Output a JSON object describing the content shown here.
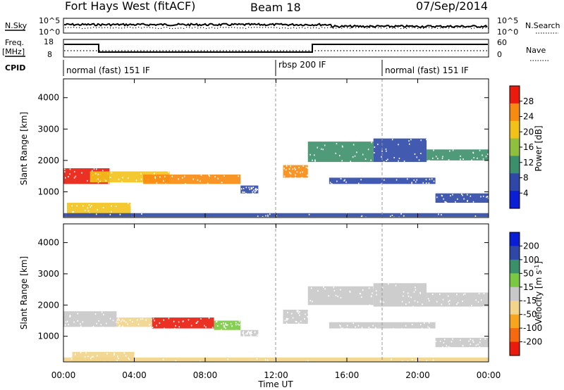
{
  "header": {
    "station": "Fort Hays West (fitACF)",
    "beam": "Beam 18",
    "date": "07/Sep/2014"
  },
  "top_panels": {
    "nsky_label": "N.Sky",
    "nsky_ticks": [
      "10^5",
      "10^0"
    ],
    "nsearch_label": "N.Search",
    "nsearch_ticks": [
      "10^5",
      "10^0"
    ],
    "freq_label_1": "Freq.",
    "freq_label_2": "[MHz]",
    "freq_ticks": [
      "18",
      "8"
    ],
    "nave_label": "Nave",
    "nave_ticks": [
      "60",
      "0"
    ],
    "cpid_label": "CPID",
    "cpid_segments": [
      {
        "label": "normal (fast) 151 IF",
        "start": 0
      },
      {
        "label": "rbsp 200 IF",
        "start": 12
      },
      {
        "label": "normal (fast) 151 IF",
        "start": 18
      }
    ]
  },
  "chart_data": [
    {
      "type": "heatmap",
      "name": "power",
      "ylabel": "Slant Range [km]",
      "ylim": [
        180,
        4600
      ],
      "yticks": [
        "1000",
        "2000",
        "3000",
        "4000"
      ],
      "colorbar_label": "Power [dB]",
      "colorbar_ticks": [
        "4",
        "8",
        "12",
        "16",
        "20",
        "24",
        "28"
      ],
      "colors": [
        "#0a1ed6",
        "#2f48a8",
        "#3b8f6a",
        "#8fbf3f",
        "#f2c21a",
        "#f78a10",
        "#e81b0c"
      ],
      "bands": [
        {
          "x0": 0.0,
          "x1": 2.6,
          "y0": 1250,
          "y1": 1750,
          "level": 6
        },
        {
          "x0": 0.2,
          "x1": 3.8,
          "y0": 200,
          "y1": 650,
          "level": 4
        },
        {
          "x0": 1.5,
          "x1": 6.0,
          "y0": 1300,
          "y1": 1650,
          "level": 4
        },
        {
          "x0": 4.5,
          "x1": 10.0,
          "y0": 1250,
          "y1": 1550,
          "level": 5
        },
        {
          "x0": 10.0,
          "x1": 11.0,
          "y0": 950,
          "y1": 1200,
          "level": 1
        },
        {
          "x0": 12.4,
          "x1": 13.8,
          "y0": 1450,
          "y1": 1850,
          "level": 5
        },
        {
          "x0": 13.8,
          "x1": 17.5,
          "y0": 1950,
          "y1": 2600,
          "level": 2
        },
        {
          "x0": 17.5,
          "x1": 20.5,
          "y0": 1950,
          "y1": 2700,
          "level": 1
        },
        {
          "x0": 20.5,
          "x1": 24.0,
          "y0": 2000,
          "y1": 2350,
          "level": 2
        },
        {
          "x0": 15.0,
          "x1": 21.0,
          "y0": 1250,
          "y1": 1450,
          "level": 1
        },
        {
          "x0": 21.0,
          "x1": 24.0,
          "y0": 650,
          "y1": 950,
          "level": 1
        },
        {
          "x0": 0.0,
          "x1": 24.0,
          "y0": 200,
          "y1": 320,
          "level": 1
        }
      ]
    },
    {
      "type": "heatmap",
      "name": "velocity",
      "ylabel": "Slant Range [km]",
      "ylim": [
        180,
        4600
      ],
      "yticks": [
        "1000",
        "2000",
        "3000",
        "4000"
      ],
      "xlabel": "Time UT",
      "xlim": [
        0,
        24
      ],
      "xticks": [
        "00:00",
        "04:00",
        "08:00",
        "12:00",
        "16:00",
        "20:00",
        "00:00"
      ],
      "colorbar_label": "Velocity",
      "colorbar_unit": "[m s",
      "colorbar_exp": "-1",
      "colorbar_ticks": [
        "-200",
        "-100",
        "-50",
        "-15",
        "15",
        "50",
        "100",
        "200"
      ],
      "colors": [
        "#e81b0c",
        "#f56a10",
        "#f7a51e",
        "#f2d48a",
        "#c8c8c8",
        "#7ac943",
        "#3b8f6a",
        "#2f48a8",
        "#0a1ed6"
      ],
      "bands": [
        {
          "x0": 0.0,
          "x1": 3.0,
          "y0": 1300,
          "y1": 1800,
          "level": 4
        },
        {
          "x0": 3.0,
          "x1": 5.0,
          "y0": 1300,
          "y1": 1600,
          "level": 3
        },
        {
          "x0": 5.0,
          "x1": 8.5,
          "y0": 1250,
          "y1": 1600,
          "level": 0
        },
        {
          "x0": 8.5,
          "x1": 10.0,
          "y0": 1200,
          "y1": 1500,
          "level": 5
        },
        {
          "x0": 10.0,
          "x1": 11.0,
          "y0": 1000,
          "y1": 1200,
          "level": 4
        },
        {
          "x0": 12.4,
          "x1": 13.8,
          "y0": 1400,
          "y1": 1850,
          "level": 4
        },
        {
          "x0": 13.8,
          "x1": 17.5,
          "y0": 2000,
          "y1": 2600,
          "level": 4
        },
        {
          "x0": 17.5,
          "x1": 20.5,
          "y0": 1950,
          "y1": 2700,
          "level": 4
        },
        {
          "x0": 20.5,
          "x1": 24.0,
          "y0": 1950,
          "y1": 2400,
          "level": 4
        },
        {
          "x0": 15.0,
          "x1": 21.0,
          "y0": 1250,
          "y1": 1450,
          "level": 4
        },
        {
          "x0": 21.0,
          "x1": 24.0,
          "y0": 650,
          "y1": 950,
          "level": 4
        },
        {
          "x0": 0.5,
          "x1": 4.0,
          "y0": 200,
          "y1": 500,
          "level": 3
        },
        {
          "x0": 0.0,
          "x1": 24.0,
          "y0": 200,
          "y1": 320,
          "level": 3
        }
      ]
    }
  ]
}
